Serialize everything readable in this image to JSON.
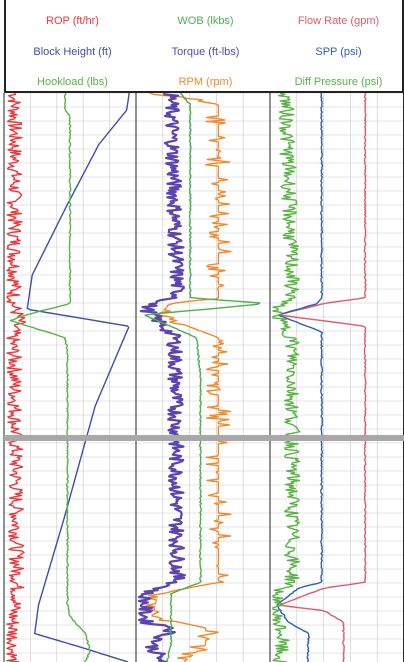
{
  "legend": {
    "rows": [
      [
        {
          "label": "ROP (ft/hr)",
          "color": "#e8383d"
        },
        {
          "label": "WOB (lkbs)",
          "color": "#4caf50"
        },
        {
          "label": "Flow Rate (gpm)",
          "color": "#e05a6d"
        }
      ],
      [
        {
          "label": "Block Height (ft)",
          "color": "#3d4fa8"
        },
        {
          "label": "Torque (ft-lbs)",
          "color": "#5a45b0"
        },
        {
          "label": "SPP (psi)",
          "color": "#2f5fb3"
        }
      ],
      [
        {
          "label": "Hookload (lbs)",
          "color": "#5ab346"
        },
        {
          "label": "RPM (rpm)",
          "color": "#f08a2c"
        },
        {
          "label": "Diff Pressure (psi)",
          "color": "#5ab346"
        }
      ]
    ]
  },
  "chart_data": {
    "type": "line",
    "orientation": "vertical-depth-log",
    "tracks": [
      {
        "series": [
          {
            "name": "ROP (ft/hr)",
            "color": "#e8383d",
            "style": "noisy",
            "points": [
              [
                0,
                0.06
              ],
              [
                0.34,
                0.06
              ],
              [
                0.37,
                0.05
              ],
              [
                0.4,
                0.1
              ],
              [
                0.41,
                0.06
              ],
              [
                0.42,
                0.05
              ],
              [
                0.43,
                0.04
              ],
              [
                0.48,
                0.06
              ],
              [
                0.89,
                0.08
              ],
              [
                0.91,
                0.05
              ],
              [
                1,
                0.04
              ]
            ]
          },
          {
            "name": "Block Height (ft)",
            "color": "#3d4fa8",
            "style": "smooth",
            "points": [
              [
                0,
                0.97
              ],
              [
                0.03,
                0.95
              ],
              [
                0.09,
                0.73
              ],
              [
                0.2,
                0.47
              ],
              [
                0.32,
                0.2
              ],
              [
                0.38,
                0.16
              ],
              [
                0.41,
                0.97
              ],
              [
                0.43,
                0.93
              ],
              [
                0.55,
                0.7
              ],
              [
                0.75,
                0.45
              ],
              [
                0.9,
                0.25
              ],
              [
                0.95,
                0.22
              ],
              [
                0.975,
                0.6
              ],
              [
                1,
                0.96
              ]
            ]
          },
          {
            "name": "Hookload (lbs)",
            "color": "#5ab346",
            "style": "blocky",
            "points": [
              [
                0,
                0.46
              ],
              [
                0.03,
                0.46
              ],
              [
                0.04,
                0.5
              ],
              [
                0.37,
                0.5
              ],
              [
                0.39,
                0.15
              ],
              [
                0.4,
                0.03
              ],
              [
                0.43,
                0.46
              ],
              [
                0.45,
                0.48
              ],
              [
                0.9,
                0.48
              ],
              [
                0.92,
                0.5
              ],
              [
                0.95,
                0.62
              ],
              [
                0.98,
                0.66
              ],
              [
                1,
                0.62
              ]
            ]
          }
        ]
      },
      {
        "series": [
          {
            "name": "RPM (rpm)",
            "color": "#f08a2c",
            "style": "blocky-noisy",
            "points": [
              [
                0,
                0.08
              ],
              [
                0.02,
                0.62
              ],
              [
                0.36,
                0.62
              ],
              [
                0.37,
                0.25
              ],
              [
                0.39,
                0.15
              ],
              [
                0.43,
                0.62
              ],
              [
                0.86,
                0.62
              ],
              [
                0.88,
                0.15
              ],
              [
                0.92,
                0.1
              ],
              [
                0.94,
                0.52
              ],
              [
                0.97,
                0.52
              ],
              [
                1,
                0.35
              ]
            ]
          },
          {
            "name": "Torque (ft-lbs)",
            "color": "#5a45b0",
            "style": "noisy",
            "points": [
              [
                0,
                0.25
              ],
              [
                0.36,
                0.3
              ],
              [
                0.37,
                0.1
              ],
              [
                0.38,
                0.06
              ],
              [
                0.43,
                0.28
              ],
              [
                0.86,
                0.3
              ],
              [
                0.88,
                0.04
              ],
              [
                0.93,
                0.05
              ],
              [
                0.94,
                0.28
              ],
              [
                0.97,
                0.1
              ],
              [
                1,
                0.18
              ]
            ]
          },
          {
            "name": "WOB (lkbs)",
            "color": "#4caf50",
            "style": "blocky",
            "points": [
              [
                0,
                0.32
              ],
              [
                0.02,
                0.4
              ],
              [
                0.36,
                0.4
              ],
              [
                0.37,
                1.0
              ],
              [
                0.39,
                0.04
              ],
              [
                0.43,
                0.45
              ],
              [
                0.5,
                0.48
              ],
              [
                0.86,
                0.48
              ],
              [
                0.88,
                0.25
              ],
              [
                0.93,
                0.25
              ],
              [
                0.97,
                0.25
              ],
              [
                1,
                0.22
              ]
            ]
          }
        ]
      },
      {
        "series": [
          {
            "name": "Flow Rate (gpm)",
            "color": "#e05a6d",
            "style": "blocky",
            "points": [
              [
                0,
                0.72
              ],
              [
                0.36,
                0.72
              ],
              [
                0.37,
                0.4
              ],
              [
                0.39,
                0.04
              ],
              [
                0.41,
                0.72
              ],
              [
                0.86,
                0.72
              ],
              [
                0.87,
                0.4
              ],
              [
                0.9,
                0.05
              ],
              [
                0.91,
                0.4
              ],
              [
                0.93,
                0.55
              ],
              [
                1,
                0.55
              ]
            ]
          },
          {
            "name": "SPP (psi)",
            "color": "#2f5fb3",
            "style": "blocky",
            "points": [
              [
                0,
                0.38
              ],
              [
                0.36,
                0.38
              ],
              [
                0.37,
                0.35
              ],
              [
                0.39,
                0.04
              ],
              [
                0.42,
                0.38
              ],
              [
                0.86,
                0.38
              ],
              [
                0.87,
                0.2
              ],
              [
                0.9,
                0.03
              ],
              [
                0.93,
                0.12
              ],
              [
                0.95,
                0.28
              ],
              [
                1,
                0.27
              ]
            ]
          },
          {
            "name": "Diff Pressure (psi)",
            "color": "#5ab346",
            "style": "noisy",
            "points": [
              [
                0,
                0.1
              ],
              [
                0.36,
                0.15
              ],
              [
                0.37,
                0.05
              ],
              [
                0.39,
                0.02
              ],
              [
                0.43,
                0.15
              ],
              [
                0.86,
                0.15
              ],
              [
                0.88,
                0.02
              ],
              [
                0.92,
                0.02
              ],
              [
                0.95,
                0.07
              ],
              [
                1,
                0.05
              ]
            ]
          }
        ]
      }
    ],
    "grid": true,
    "legend_position": "top"
  }
}
